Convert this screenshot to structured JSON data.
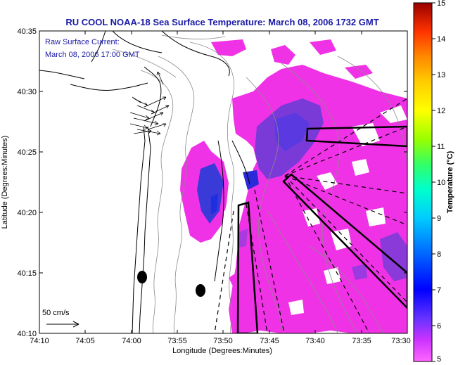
{
  "title": "RU COOL  NOAA-18  Sea Surface Temperature:  March 08, 2006 1732 GMT",
  "current_note_line1": "Raw Surface Current:",
  "current_note_line2": "March 08, 2006 17:00 GMT",
  "scale_label": "50 cm/s",
  "xlabel": "Longitude (Degrees:Minutes)",
  "ylabel": "Latitude (Degrees:Minutes)",
  "x_ticks": [
    "74:10",
    "74:05",
    "74:00",
    "73:55",
    "73:50",
    "73:45",
    "73:40",
    "73:35",
    "73:30"
  ],
  "y_ticks": [
    "40:35",
    "40:30",
    "40:25",
    "40:20",
    "40:15",
    "40:10"
  ],
  "colorbar": {
    "title": "Temperature (°C)",
    "range": [
      5,
      15
    ],
    "ticks": [
      "5",
      "6",
      "7",
      "8",
      "9",
      "10",
      "11",
      "12",
      "13",
      "14",
      "15"
    ]
  },
  "colors": {
    "sst_warm_pink": "#f032e6",
    "sst_cold_blue": "#3a3ad8",
    "title_blue": "#1a1aa6"
  }
}
